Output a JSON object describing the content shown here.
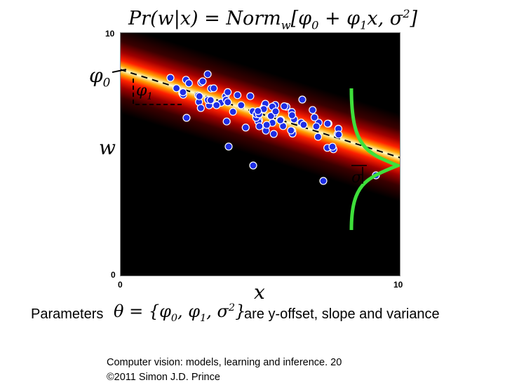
{
  "equation": {
    "lhs": "Pr(w|x)",
    "eq": " = Norm",
    "sub": "w",
    "rhs_open": "[φ",
    "rhs_0": "0",
    "rhs_mid": " + φ",
    "rhs_1": "1",
    "rhs_x": "x, σ",
    "rhs_sq": "2",
    "rhs_close": "]"
  },
  "axes": {
    "y_ticks": [
      "10",
      "0"
    ],
    "x_ticks": [
      "0",
      "10"
    ],
    "ylabel": "w",
    "xlabel": "x"
  },
  "annotations": {
    "phi0": "φ",
    "phi0_sub": "0",
    "phi1": "φ",
    "phi1_sub": "1",
    "sigma": "σ"
  },
  "parameters": {
    "prefix": "Parameters",
    "theta": "θ = {φ",
    "t0": "0",
    "t_mid1": ", φ",
    "t1": "1",
    "t_mid2": ", σ",
    "t_sq": "2",
    "t_close": "}",
    "suffix": "are y-offset, slope and variance"
  },
  "footer": {
    "line1": "Computer vision: models, learning and inference.   20",
    "line2": "©2011 Simon J.D. Prince"
  },
  "colors": {
    "background": "#000000",
    "density_peak": "#ffffc8",
    "density_mid": "#ff2000",
    "points": "#1e2ee6",
    "gaussian_curve": "#3ee03a",
    "mean_line": "#000000"
  }
}
